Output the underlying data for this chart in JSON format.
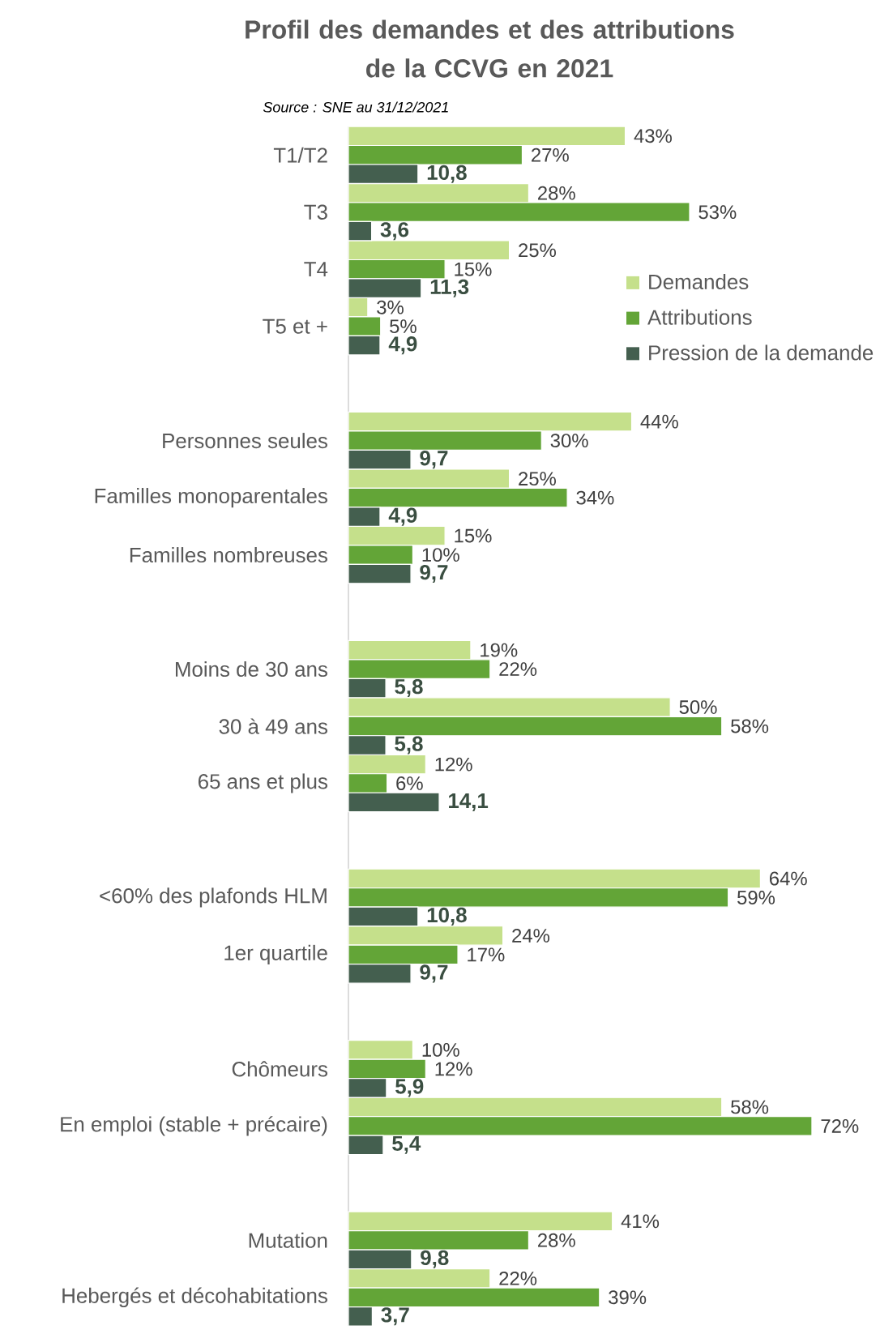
{
  "chart_data": {
    "type": "bar",
    "orientation": "horizontal",
    "title": "Profil des demandes et des attributions de la CCVG en 2021",
    "annotations": [
      "Source : SNE au 31/12/2021"
    ],
    "categories": [
      "T1/T2",
      "T3",
      "T4",
      "T5 et +",
      null,
      "Personnes seules",
      "Familles monoparentales",
      "Familles nombreuses",
      null,
      "Moins de 30 ans",
      "30 à 49 ans",
      "65 ans et plus",
      null,
      "<60% des plafonds HLM",
      "1er quartile",
      null,
      "Chômeurs",
      "En emploi (stable + précaire)",
      null,
      "Mutation",
      "Hebergés et décohabitations"
    ],
    "series": [
      {
        "name": "Demandes",
        "color": "#c5e08b",
        "values": [
          43,
          28,
          25,
          3,
          null,
          44,
          25,
          15,
          null,
          19,
          50,
          12,
          null,
          64,
          24,
          null,
          10,
          58,
          null,
          41,
          22
        ],
        "value_labels": [
          "43%",
          "28%",
          "25%",
          "3%",
          null,
          "44%",
          "25%",
          "15%",
          null,
          "19%",
          "50%",
          "12%",
          null,
          "64%",
          "24%",
          null,
          "10%",
          "58%",
          null,
          "41%",
          "22%"
        ]
      },
      {
        "name": "Attributions",
        "color": "#63a537",
        "values": [
          27,
          53,
          15,
          5,
          null,
          30,
          34,
          10,
          null,
          22,
          58,
          6,
          null,
          59,
          17,
          null,
          12,
          72,
          null,
          28,
          39
        ],
        "value_labels": [
          "27%",
          "53%",
          "15%",
          "5%",
          null,
          "30%",
          "34%",
          "10%",
          null,
          "22%",
          "58%",
          "6%",
          null,
          "59%",
          "17%",
          null,
          "12%",
          "72%",
          null,
          "28%",
          "39%"
        ]
      },
      {
        "name": "Pression de la demande",
        "color": "#445f4f",
        "values": [
          10.8,
          3.6,
          11.3,
          4.9,
          null,
          9.7,
          4.9,
          9.7,
          null,
          5.8,
          5.8,
          14.1,
          null,
          10.8,
          9.7,
          null,
          5.9,
          5.4,
          null,
          9.8,
          3.7
        ],
        "value_labels": [
          "10,8",
          "3,6",
          "11,3",
          "4,9",
          null,
          "9,7",
          "4,9",
          "9,7",
          null,
          "5,8",
          "5,8",
          "14,1",
          null,
          "10,8",
          "9,7",
          null,
          "5,9",
          "5,4",
          null,
          "9,8",
          "3,7"
        ]
      }
    ],
    "legend": "top right",
    "tick_labels": "y"
  }
}
